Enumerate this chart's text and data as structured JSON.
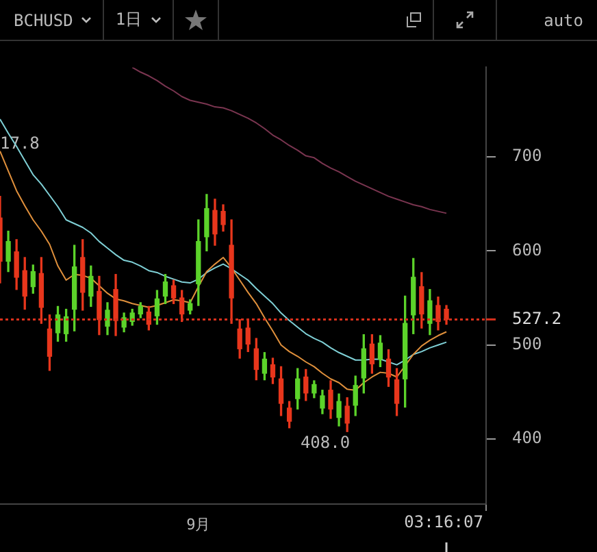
{
  "chart_data": {
    "type": "candlestick",
    "title": "BCHUSD",
    "categories": [
      null,
      null,
      null,
      null,
      null,
      null,
      null,
      null,
      null,
      null,
      null,
      null,
      null,
      null,
      null,
      null,
      null,
      null,
      null,
      null,
      null,
      null,
      null,
      null,
      "9月",
      null,
      null,
      null,
      null,
      null,
      null,
      null,
      null,
      null,
      null,
      null,
      null,
      null,
      null,
      null,
      null,
      null,
      null,
      null,
      null,
      null,
      null,
      null,
      null,
      null,
      null,
      null,
      null,
      null,
      null
    ],
    "ohlc": [
      [
        635,
        658,
        566,
        589
      ],
      [
        589,
        621,
        578,
        610
      ],
      [
        599,
        612,
        559,
        572
      ],
      [
        579,
        593,
        538,
        552
      ],
      [
        562,
        585,
        555,
        578
      ],
      [
        576,
        593,
        523,
        540
      ],
      [
        517,
        532,
        473,
        488
      ],
      [
        513,
        541,
        504,
        532
      ],
      [
        512,
        538,
        504,
        530
      ],
      [
        538,
        606,
        515,
        583
      ],
      [
        593,
        612,
        537,
        556
      ],
      [
        552,
        584,
        541,
        573
      ],
      [
        557,
        573,
        511,
        527
      ],
      [
        520,
        545,
        511,
        537
      ],
      [
        559,
        575,
        510,
        526
      ],
      [
        519,
        534,
        514,
        529
      ],
      [
        525,
        538,
        521,
        534
      ],
      [
        533,
        545,
        529,
        541
      ],
      [
        535,
        541,
        516,
        522
      ],
      [
        531,
        558,
        522,
        549
      ],
      [
        552,
        575,
        544,
        567
      ],
      [
        563,
        569,
        544,
        550
      ],
      [
        550,
        558,
        525,
        533
      ],
      [
        537,
        548,
        533,
        544
      ],
      [
        565,
        633,
        542,
        610
      ],
      [
        615,
        660,
        600,
        645
      ],
      [
        643,
        655,
        606,
        618
      ],
      [
        642,
        649,
        621,
        628
      ],
      [
        606,
        633,
        523,
        550
      ],
      [
        517,
        527,
        486,
        496
      ],
      [
        518,
        526,
        493,
        501
      ],
      [
        496,
        507,
        463,
        474
      ],
      [
        470,
        492,
        463,
        485
      ],
      [
        479,
        486,
        459,
        466
      ],
      [
        464,
        477,
        425,
        438
      ],
      [
        433,
        440,
        412,
        419
      ],
      [
        443,
        475,
        432,
        464
      ],
      [
        466,
        474,
        441,
        449
      ],
      [
        449,
        462,
        444,
        458
      ],
      [
        433,
        452,
        427,
        446
      ],
      [
        452,
        462,
        422,
        432
      ],
      [
        423,
        448,
        414,
        440
      ],
      [
        435,
        444,
        408,
        417
      ],
      [
        436,
        467,
        425,
        457
      ],
      [
        465,
        511,
        449,
        496
      ],
      [
        501,
        511,
        470,
        480
      ],
      [
        485,
        510,
        477,
        502
      ],
      [
        485,
        495,
        456,
        466
      ],
      [
        463,
        475,
        425,
        438
      ],
      [
        464,
        552,
        434,
        523
      ],
      [
        532,
        592,
        512,
        572
      ],
      [
        562,
        577,
        518,
        533
      ],
      [
        523,
        559,
        511,
        547
      ],
      [
        542,
        551,
        516,
        525
      ],
      [
        538,
        542,
        522,
        527.2
      ]
    ],
    "colors": [
      "#e8361c",
      "#5cd32a",
      "#e8361c",
      "#e8361c",
      "#5cd32a",
      "#e8361c",
      "#e8361c",
      "#5cd32a",
      "#5cd32a",
      "#5cd32a",
      "#e8361c",
      "#5cd32a",
      "#e8361c",
      "#5cd32a",
      "#e8361c",
      "#5cd32a",
      "#5cd32a",
      "#5cd32a",
      "#e8361c",
      "#5cd32a",
      "#5cd32a",
      "#e8361c",
      "#e8361c",
      "#5cd32a",
      "#5cd32a",
      "#5cd32a",
      "#e8361c",
      "#e8361c",
      "#e8361c",
      "#e8361c",
      "#e8361c",
      "#e8361c",
      "#5cd32a",
      "#e8361c",
      "#e8361c",
      "#e8361c",
      "#5cd32a",
      "#e8361c",
      "#5cd32a",
      "#5cd32a",
      "#e8361c",
      "#5cd32a",
      "#e8361c",
      "#5cd32a",
      "#5cd32a",
      "#e8361c",
      "#5cd32a",
      "#e8361c",
      "#e8361c",
      "#5cd32a",
      "#5cd32a",
      "#e8361c",
      "#5cd32a",
      "#e8361c",
      "#e8361c"
    ],
    "series": [
      {
        "type": "line",
        "color": "#e0903c",
        "values": [
          706,
          685,
          664,
          648,
          633,
          621,
          607,
          584,
          569,
          575,
          574,
          571,
          563,
          555,
          549,
          547,
          544,
          542,
          540,
          542,
          545,
          548,
          547,
          545,
          562,
          578,
          586,
          593,
          582,
          569,
          556,
          544,
          529,
          515,
          500,
          493,
          488,
          482,
          477,
          470,
          464,
          460,
          453,
          452,
          460,
          466,
          471,
          470,
          466,
          478,
          490,
          499,
          505,
          510,
          514
        ]
      },
      {
        "type": "line",
        "color": "#7fd0d6",
        "values": [
          740,
          725,
          711,
          696,
          681,
          671,
          659,
          647,
          633,
          629,
          625,
          619,
          610,
          603,
          596,
          590,
          588,
          584,
          579,
          577,
          573,
          570,
          567,
          566,
          570,
          577,
          582,
          586,
          581,
          575,
          569,
          560,
          552,
          544,
          534,
          526,
          519,
          512,
          507,
          503,
          497,
          492,
          488,
          484,
          484,
          485,
          485,
          482,
          479,
          484,
          490,
          493,
          497,
          500,
          503
        ]
      },
      {
        "type": "line",
        "color": "#7a3550",
        "values": [
          null,
          null,
          null,
          null,
          null,
          null,
          null,
          null,
          null,
          null,
          null,
          null,
          null,
          null,
          null,
          null,
          795,
          790,
          786,
          781,
          775,
          770,
          764,
          760,
          758,
          756,
          753,
          752,
          749,
          745,
          741,
          736,
          730,
          723,
          718,
          712,
          707,
          701,
          699,
          693,
          688,
          684,
          679,
          674,
          670,
          666,
          662,
          658,
          655,
          652,
          649,
          647,
          644,
          642,
          640
        ]
      }
    ],
    "ylim": [
      331,
      795
    ],
    "yticks": [
      400,
      500,
      600,
      700
    ],
    "ref_lines": [
      {
        "axis": "y",
        "value": 527.2,
        "label": "527.2",
        "color": "#d8301c",
        "line_style": "dotted"
      }
    ],
    "annotations": [
      "1日",
      "auto",
      "408.0",
      "17.8",
      "03:16:07"
    ]
  }
}
